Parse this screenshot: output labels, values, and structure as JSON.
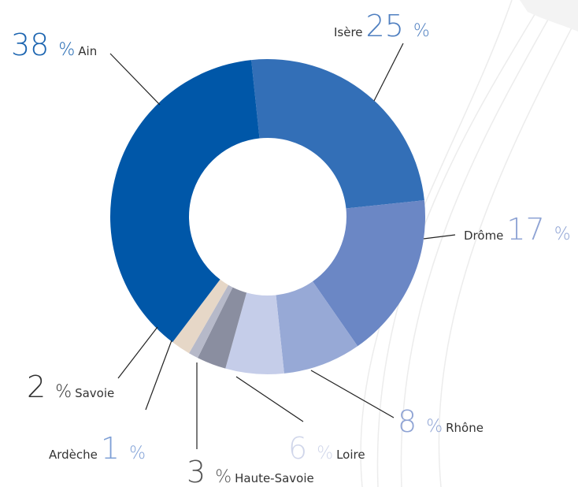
{
  "chart_data": {
    "type": "donut",
    "categories": [
      "Isère",
      "Drôme",
      "Rhône",
      "Loire",
      "Haute-Savoie",
      "Ardèche",
      "Savoie",
      "Ain"
    ],
    "values": [
      25,
      17,
      8,
      6,
      3,
      1,
      2,
      38
    ],
    "unit": "%",
    "colors": [
      "#336fb7",
      "#6b87c5",
      "#97a9d6",
      "#c5cde9",
      "#8a8ea0",
      "#b6b9c9",
      "#e6d7c7",
      "#0057a8"
    ],
    "label_colors": [
      "#4f7fc0",
      "#8ea3d4",
      "#8ea3d4",
      "#d0d6ea",
      "#555555",
      "#7fa0d6",
      "#333333",
      "#1b64b0"
    ]
  }
}
